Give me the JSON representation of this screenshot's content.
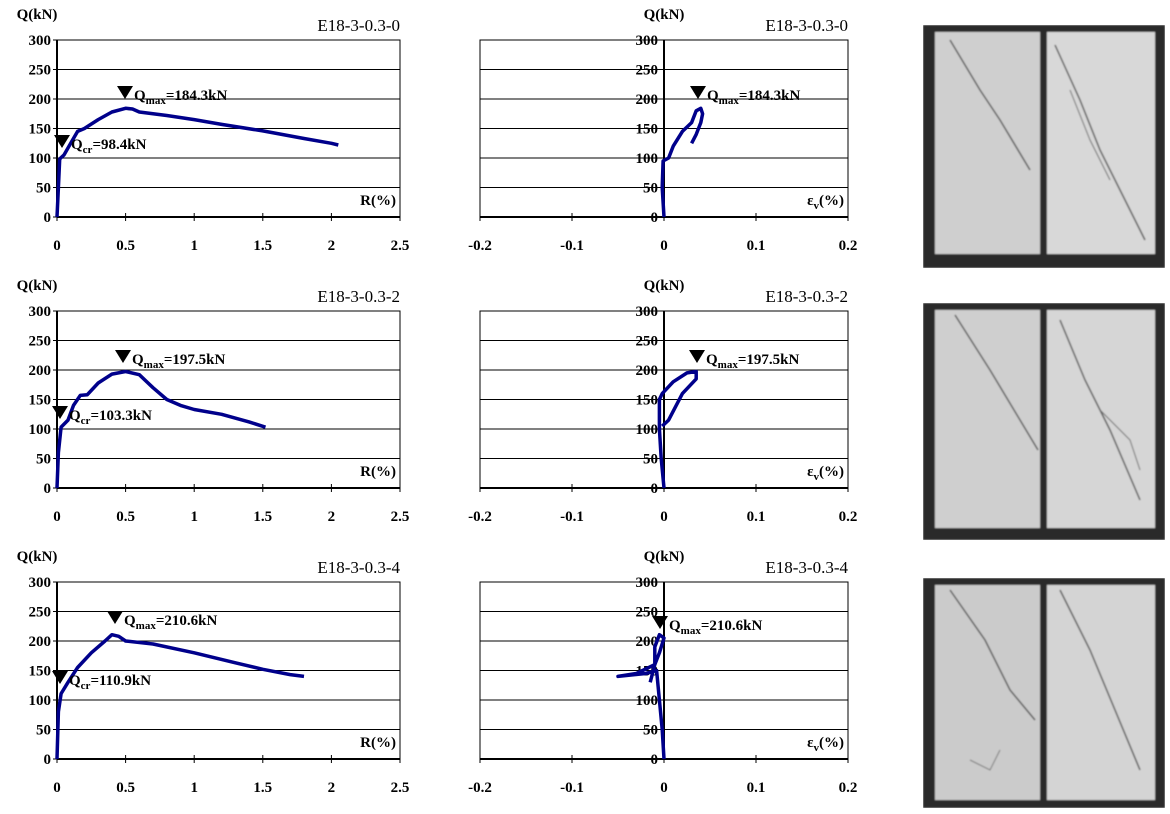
{
  "chart_data": [
    {
      "type": "line",
      "title": "E18-3-0.3-0",
      "y_label": "Q(kN)",
      "x_label": {
        "text": "R(%)"
      },
      "xlim": [
        0,
        2.5
      ],
      "ylim": [
        0,
        300
      ],
      "xticks": [
        0,
        0.5,
        1,
        1.5,
        2,
        2.5
      ],
      "yticks": [
        0,
        50,
        100,
        150,
        200,
        250,
        300
      ],
      "grid": true,
      "series": [
        {
          "color": "#00008b",
          "x": [
            0,
            0.01,
            0.02,
            0.05,
            0.1,
            0.15,
            0.2,
            0.3,
            0.4,
            0.5,
            0.55,
            0.6,
            0.8,
            1.0,
            1.2,
            1.5,
            1.8,
            2.0,
            2.05
          ],
          "values": [
            0,
            50,
            98.4,
            105,
            125,
            145,
            150,
            165,
            178,
            184.3,
            183,
            178,
            172,
            165,
            157,
            146,
            133,
            125,
            122
          ]
        }
      ],
      "annotations": [
        {
          "symbol": "Q",
          "sub": "max",
          "text": "=184.3kN"
        },
        {
          "symbol": "Q",
          "sub": "cr",
          "text": "=98.4kN"
        }
      ]
    },
    {
      "type": "line",
      "title": "E18-3-0.3-0",
      "y_label": "Q(kN)",
      "x_label": {
        "text": "ε",
        "sub": "v",
        "tail": "(%)"
      },
      "xlim": [
        -0.2,
        0.2
      ],
      "ylim": [
        0,
        300
      ],
      "xticks": [
        -0.2,
        -0.1,
        0,
        0.1,
        0.2
      ],
      "yticks": [
        0,
        50,
        100,
        150,
        200,
        250,
        300
      ],
      "grid": true,
      "series": [
        {
          "color": "#00008b",
          "x": [
            0,
            -0.002,
            -0.001,
            0.005,
            0.01,
            0.02,
            0.03,
            0.035,
            0.04,
            0.042,
            0.04,
            0.035,
            0.03
          ],
          "values": [
            0,
            50,
            95,
            100,
            120,
            145,
            160,
            180,
            184.3,
            175,
            160,
            140,
            125
          ]
        }
      ],
      "annotations": [
        {
          "symbol": "Q",
          "sub": "max",
          "text": "=184.3kN"
        }
      ]
    },
    {
      "type": "line",
      "title": "E18-3-0.3-2",
      "y_label": "Q(kN)",
      "x_label": {
        "text": "R(%)"
      },
      "xlim": [
        0,
        2.5
      ],
      "ylim": [
        0,
        300
      ],
      "xticks": [
        0,
        0.5,
        1,
        1.5,
        2,
        2.5
      ],
      "yticks": [
        0,
        50,
        100,
        150,
        200,
        250,
        300
      ],
      "grid": true,
      "series": [
        {
          "color": "#00008b",
          "x": [
            0,
            0.01,
            0.03,
            0.08,
            0.12,
            0.17,
            0.22,
            0.3,
            0.4,
            0.5,
            0.6,
            0.7,
            0.8,
            0.9,
            1.0,
            1.2,
            1.4,
            1.52
          ],
          "values": [
            0,
            60,
            103.3,
            115,
            140,
            157,
            158,
            178,
            193,
            197.5,
            192,
            170,
            150,
            140,
            133,
            125,
            112,
            103
          ]
        }
      ],
      "annotations": [
        {
          "symbol": "Q",
          "sub": "max",
          "text": "=197.5kN"
        },
        {
          "symbol": "Q",
          "sub": "cr",
          "text": "=103.3kN"
        }
      ]
    },
    {
      "type": "line",
      "title": "E18-3-0.3-2",
      "y_label": "Q(kN)",
      "x_label": {
        "text": "ε",
        "sub": "v",
        "tail": "(%)"
      },
      "xlim": [
        -0.2,
        0.2
      ],
      "ylim": [
        0,
        300
      ],
      "xticks": [
        -0.2,
        -0.1,
        0,
        0.1,
        0.2
      ],
      "yticks": [
        0,
        50,
        100,
        150,
        200,
        250,
        300
      ],
      "grid": true,
      "series": [
        {
          "color": "#00008b",
          "x": [
            0,
            -0.003,
            -0.005,
            -0.005,
            -0.002,
            0.01,
            0.025,
            0.035,
            0.035,
            0.02,
            0.005,
            -0.002
          ],
          "values": [
            0,
            50,
            100,
            150,
            160,
            180,
            195,
            197.5,
            185,
            160,
            115,
            105
          ]
        }
      ],
      "annotations": [
        {
          "symbol": "Q",
          "sub": "max",
          "text": "=197.5kN"
        }
      ]
    },
    {
      "type": "line",
      "title": "E18-3-0.3-4",
      "y_label": "Q(kN)",
      "x_label": {
        "text": "R(%)"
      },
      "xlim": [
        0,
        2.5
      ],
      "ylim": [
        0,
        300
      ],
      "xticks": [
        0,
        0.5,
        1,
        1.5,
        2,
        2.5
      ],
      "yticks": [
        0,
        50,
        100,
        150,
        200,
        250,
        300
      ],
      "grid": true,
      "series": [
        {
          "color": "#00008b",
          "x": [
            0,
            0.01,
            0.03,
            0.08,
            0.15,
            0.25,
            0.35,
            0.4,
            0.45,
            0.5,
            0.7,
            1.0,
            1.3,
            1.5,
            1.7,
            1.8
          ],
          "values": [
            0,
            80,
            110.9,
            130,
            155,
            180,
            200,
            210.6,
            208,
            200,
            195,
            180,
            163,
            152,
            143,
            140
          ]
        }
      ],
      "annotations": [
        {
          "symbol": "Q",
          "sub": "max",
          "text": "=210.6kN"
        },
        {
          "symbol": "Q",
          "sub": "cr",
          "text": "=110.9kN"
        }
      ]
    },
    {
      "type": "line",
      "title": "E18-3-0.3-4",
      "y_label": "Q(kN)",
      "x_label": {
        "text": "ε",
        "sub": "v",
        "tail": "(%)"
      },
      "xlim": [
        -0.2,
        0.2
      ],
      "ylim": [
        0,
        300
      ],
      "xticks": [
        -0.2,
        -0.1,
        0,
        0.1,
        0.2
      ],
      "yticks": [
        0,
        50,
        100,
        150,
        200,
        250,
        300
      ],
      "grid": true,
      "series": [
        {
          "color": "#00008b",
          "x": [
            0,
            -0.002,
            -0.005,
            -0.008,
            -0.02,
            -0.05,
            -0.03,
            -0.01,
            -0.01,
            -0.005,
            0,
            -0.005,
            -0.01,
            -0.015
          ],
          "values": [
            0,
            50,
            100,
            150,
            145,
            140,
            145,
            160,
            190,
            210.6,
            205,
            180,
            160,
            130
          ]
        }
      ],
      "annotations": [
        {
          "symbol": "Q",
          "sub": "max",
          "text": "=210.6kN"
        }
      ]
    }
  ]
}
